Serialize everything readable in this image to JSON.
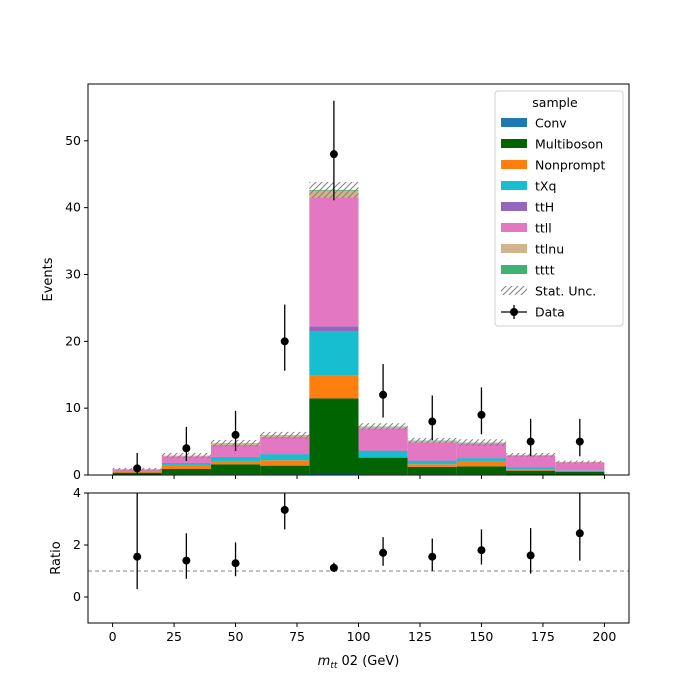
{
  "chart_data": {
    "type": "bar",
    "stacked": true,
    "x_edges": [
      0,
      20,
      40,
      60,
      80,
      100,
      120,
      140,
      160,
      180,
      200
    ],
    "x_ticks": [
      0,
      25,
      50,
      75,
      100,
      125,
      150,
      175,
      200
    ],
    "xlim": [
      -10,
      210
    ],
    "xlabel_prefix": "m",
    "xlabel_sub": "tt",
    "xlabel_suffix": " 02 (GeV)",
    "main": {
      "ylabel": "Events",
      "ylim": [
        0,
        58.5
      ],
      "y_ticks": [
        0,
        10,
        20,
        30,
        40,
        50
      ]
    },
    "ratio": {
      "ylabel": "Ratio",
      "ylim": [
        -1,
        4
      ],
      "y_ticks": [
        0,
        2,
        4
      ],
      "reference_line": 1
    },
    "legend": {
      "title": "sample",
      "placement": "upper right",
      "entries": [
        {
          "label": "Conv",
          "kind": "patch",
          "color": "#1f77b4"
        },
        {
          "label": "Multiboson",
          "kind": "patch",
          "color": "#006400"
        },
        {
          "label": "Nonprompt",
          "kind": "patch",
          "color": "#ff7f0e"
        },
        {
          "label": "tXq",
          "kind": "patch",
          "color": "#17becf"
        },
        {
          "label": "ttH",
          "kind": "patch",
          "color": "#9467bd"
        },
        {
          "label": "ttll",
          "kind": "patch",
          "color": "#e377c2"
        },
        {
          "label": "ttlnu",
          "kind": "patch",
          "color": "#d2b48c"
        },
        {
          "label": "tttt",
          "kind": "patch",
          "color": "#3cb371"
        },
        {
          "label": "Stat. Unc.",
          "kind": "hatch",
          "color": "#808080"
        },
        {
          "label": "Data",
          "kind": "errorbar",
          "color": "#000000"
        }
      ]
    },
    "series": [
      {
        "name": "Conv",
        "color": "#1f77b4",
        "values": [
          0.05,
          0.1,
          0.1,
          0.1,
          0.15,
          0.1,
          0.1,
          0.1,
          0.05,
          0.05
        ]
      },
      {
        "name": "Multiboson",
        "color": "#006400",
        "values": [
          0.3,
          0.8,
          1.5,
          1.3,
          11.3,
          2.5,
          1.1,
          1.2,
          0.6,
          0.4
        ]
      },
      {
        "name": "Nonprompt",
        "color": "#ff7f0e",
        "values": [
          0.1,
          0.6,
          0.5,
          0.8,
          3.5,
          0.0,
          0.4,
          0.8,
          0.2,
          0.0
        ]
      },
      {
        "name": "tXq",
        "color": "#17becf",
        "values": [
          0.05,
          0.2,
          0.5,
          0.9,
          6.5,
          1.0,
          0.5,
          0.4,
          0.3,
          0.2
        ]
      },
      {
        "name": "ttH",
        "color": "#9467bd",
        "values": [
          0.02,
          0.1,
          0.1,
          0.1,
          0.8,
          0.1,
          0.1,
          0.1,
          0.05,
          0.05
        ]
      },
      {
        "name": "ttll",
        "color": "#e377c2",
        "values": [
          0.3,
          1.0,
          1.8,
          2.5,
          19.3,
          3.3,
          2.7,
          2.1,
          1.7,
          1.2
        ]
      },
      {
        "name": "ttlnu",
        "color": "#d2b48c",
        "values": [
          0.05,
          0.1,
          0.2,
          0.2,
          1.0,
          0.2,
          0.2,
          0.1,
          0.1,
          0.05
        ]
      },
      {
        "name": "tttt",
        "color": "#3cb371",
        "values": [
          0.0,
          0.0,
          0.05,
          0.05,
          0.1,
          0.05,
          0.05,
          0.05,
          0.0,
          0.0
        ]
      }
    ],
    "stat_unc": [
      0.2,
      0.4,
      0.5,
      0.5,
      1.2,
      0.5,
      0.4,
      0.5,
      0.3,
      0.2
    ],
    "data": {
      "name": "Data",
      "x": [
        10,
        30,
        50,
        70,
        90,
        110,
        130,
        150,
        170,
        190
      ],
      "y": [
        1,
        4,
        6,
        20,
        48,
        12,
        8,
        9,
        5,
        5
      ],
      "err_low": [
        0.8,
        1.9,
        2.4,
        4.4,
        6.9,
        3.4,
        2.8,
        2.9,
        2.2,
        2.2
      ],
      "err_high": [
        2.3,
        3.2,
        3.6,
        5.5,
        8.0,
        4.6,
        3.9,
        4.1,
        3.4,
        3.4
      ]
    },
    "ratio_data": {
      "x": [
        10,
        30,
        50,
        70,
        90,
        110,
        130,
        150,
        170,
        190
      ],
      "y": [
        1.55,
        1.4,
        1.3,
        3.35,
        1.12,
        1.7,
        1.55,
        1.8,
        1.6,
        2.45
      ],
      "err_low": [
        1.25,
        0.7,
        0.5,
        0.75,
        0.15,
        0.5,
        0.55,
        0.55,
        0.7,
        1.05
      ],
      "err_high": [
        2.45,
        1.05,
        0.8,
        0.65,
        0.2,
        0.6,
        0.7,
        0.8,
        1.05,
        1.55
      ]
    }
  }
}
